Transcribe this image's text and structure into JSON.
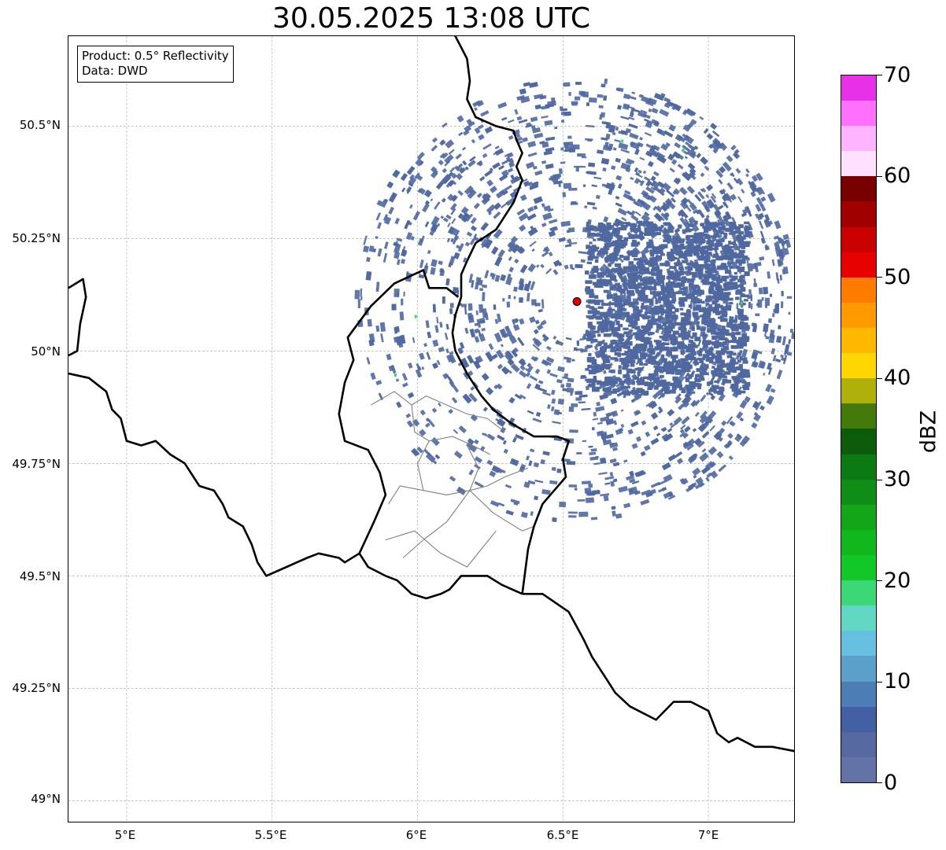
{
  "title": "30.05.2025 13:08 UTC",
  "info": {
    "product": "Product: 0.5° Reflectivity",
    "data": "Data: DWD"
  },
  "lat_ticks": [
    "50.5°N",
    "50.25°N",
    "50°N",
    "49.75°N",
    "49.5°N",
    "49.25°N",
    "49°N"
  ],
  "lon_ticks": [
    "5°E",
    "5.5°E",
    "6°E",
    "6.5°E",
    "7°E"
  ],
  "colorbar": {
    "unit": "dBZ",
    "ticks": [
      "0",
      "10",
      "20",
      "30",
      "40",
      "50",
      "60",
      "70"
    ],
    "colors": [
      "#6473a6",
      "#5568a0",
      "#4360a4",
      "#4c7db4",
      "#5aa0c8",
      "#64c0de",
      "#62d8c4",
      "#3cd878",
      "#12c828",
      "#10b81c",
      "#12a618",
      "#0e8e16",
      "#0c7a12",
      "#0c5c0c",
      "#447a0c",
      "#b0b00a",
      "#ffd600",
      "#ffb800",
      "#ff9a00",
      "#ff7c00",
      "#e60000",
      "#c80000",
      "#a00000",
      "#780000",
      "#ffe0ff",
      "#ffb4ff",
      "#ff70ff",
      "#e830e8"
    ]
  },
  "map": {
    "extent": {
      "lon_min": 4.8,
      "lon_max": 7.3,
      "lat_min": 48.95,
      "lat_max": 50.7
    },
    "radar_site": {
      "lon": 6.548,
      "lat": 50.11,
      "color": "#e00000"
    },
    "echo_color": "#5068a0",
    "echo_light_color": "#3cd878",
    "country_borders": [
      [
        [
          6.13,
          50.7
        ],
        [
          6.17,
          50.65
        ],
        [
          6.18,
          50.6
        ],
        [
          6.17,
          50.56
        ],
        [
          6.2,
          50.52
        ],
        [
          6.27,
          50.5
        ],
        [
          6.33,
          50.49
        ],
        [
          6.34,
          50.47
        ],
        [
          6.36,
          50.44
        ],
        [
          6.34,
          50.41
        ],
        [
          6.36,
          50.38
        ],
        [
          6.33,
          50.33
        ],
        [
          6.3,
          50.3
        ],
        [
          6.27,
          50.27
        ],
        [
          6.2,
          50.24
        ],
        [
          6.17,
          50.2
        ],
        [
          6.15,
          50.17
        ],
        [
          6.15,
          50.12
        ],
        [
          6.13,
          50.08
        ],
        [
          6.12,
          50.04
        ],
        [
          6.13,
          50.0
        ],
        [
          6.17,
          49.95
        ],
        [
          6.22,
          49.9
        ],
        [
          6.26,
          49.87
        ],
        [
          6.32,
          49.84
        ],
        [
          6.4,
          49.81
        ],
        [
          6.48,
          49.81
        ],
        [
          6.52,
          49.8
        ],
        [
          6.5,
          49.76
        ],
        [
          6.51,
          49.72
        ],
        [
          6.47,
          49.69
        ],
        [
          6.43,
          49.66
        ],
        [
          6.4,
          49.61
        ],
        [
          6.38,
          49.56
        ],
        [
          6.36,
          49.46
        ]
      ],
      [
        [
          6.13,
          50.7
        ],
        [
          6.05,
          50.75
        ]
      ],
      [
        [
          6.36,
          49.46
        ],
        [
          6.43,
          49.46
        ],
        [
          6.52,
          49.42
        ],
        [
          6.57,
          49.36
        ],
        [
          6.6,
          49.32
        ],
        [
          6.64,
          49.28
        ],
        [
          6.68,
          49.24
        ],
        [
          6.73,
          49.21
        ],
        [
          6.82,
          49.18
        ],
        [
          6.85,
          49.2
        ],
        [
          6.88,
          49.22
        ],
        [
          6.94,
          49.22
        ],
        [
          7.0,
          49.2
        ],
        [
          7.03,
          49.15
        ],
        [
          7.07,
          49.13
        ],
        [
          7.1,
          49.14
        ],
        [
          7.16,
          49.12
        ],
        [
          7.22,
          49.12
        ],
        [
          7.3,
          49.11
        ]
      ],
      [
        [
          4.8,
          50.14
        ],
        [
          4.85,
          50.16
        ],
        [
          4.86,
          50.12
        ],
        [
          4.84,
          50.06
        ],
        [
          4.83,
          50.0
        ],
        [
          4.8,
          49.99
        ]
      ],
      [
        [
          4.8,
          49.95
        ],
        [
          4.87,
          49.94
        ],
        [
          4.93,
          49.91
        ],
        [
          4.95,
          49.87
        ],
        [
          4.98,
          49.85
        ],
        [
          5.0,
          49.8
        ],
        [
          5.05,
          49.79
        ],
        [
          5.1,
          49.8
        ],
        [
          5.15,
          49.77
        ],
        [
          5.2,
          49.75
        ],
        [
          5.25,
          49.7
        ],
        [
          5.3,
          49.69
        ],
        [
          5.33,
          49.66
        ],
        [
          5.35,
          49.63
        ],
        [
          5.4,
          49.61
        ],
        [
          5.43,
          49.57
        ],
        [
          5.45,
          49.53
        ],
        [
          5.48,
          49.5
        ],
        [
          5.55,
          49.52
        ],
        [
          5.62,
          49.54
        ],
        [
          5.66,
          49.55
        ],
        [
          5.73,
          49.54
        ],
        [
          5.75,
          49.53
        ],
        [
          5.8,
          49.55
        ],
        [
          5.83,
          49.52
        ],
        [
          5.89,
          49.5
        ],
        [
          5.93,
          49.49
        ],
        [
          5.98,
          49.46
        ],
        [
          6.03,
          49.45
        ],
        [
          6.08,
          49.46
        ],
        [
          6.11,
          49.47
        ],
        [
          6.15,
          49.5
        ],
        [
          6.24,
          49.5
        ],
        [
          6.29,
          49.48
        ],
        [
          6.36,
          49.46
        ]
      ],
      [
        [
          5.8,
          49.55
        ],
        [
          5.85,
          49.62
        ],
        [
          5.89,
          49.68
        ],
        [
          5.87,
          49.73
        ],
        [
          5.83,
          49.78
        ],
        [
          5.75,
          49.8
        ],
        [
          5.73,
          49.86
        ],
        [
          5.75,
          49.93
        ],
        [
          5.78,
          49.98
        ],
        [
          5.76,
          50.03
        ],
        [
          5.84,
          50.1
        ],
        [
          5.92,
          50.15
        ],
        [
          6.02,
          50.18
        ],
        [
          6.04,
          50.14
        ],
        [
          6.1,
          50.14
        ],
        [
          6.14,
          50.12
        ]
      ]
    ],
    "admin_borders": [
      [
        [
          5.84,
          49.88
        ],
        [
          5.92,
          49.91
        ],
        [
          5.98,
          49.88
        ],
        [
          6.03,
          49.9
        ],
        [
          6.1,
          49.88
        ],
        [
          6.17,
          49.86
        ],
        [
          6.24,
          49.85
        ],
        [
          6.3,
          49.82
        ]
      ],
      [
        [
          5.98,
          49.88
        ],
        [
          5.99,
          49.82
        ],
        [
          6.04,
          49.8
        ],
        [
          6.12,
          49.81
        ],
        [
          6.19,
          49.79
        ],
        [
          6.25,
          49.77
        ]
      ],
      [
        [
          6.04,
          49.8
        ],
        [
          6.0,
          49.75
        ],
        [
          6.02,
          49.69
        ],
        [
          5.94,
          49.7
        ],
        [
          5.9,
          49.66
        ]
      ],
      [
        [
          6.02,
          49.69
        ],
        [
          6.1,
          49.68
        ],
        [
          6.18,
          49.69
        ],
        [
          6.24,
          49.7
        ],
        [
          6.3,
          49.72
        ],
        [
          6.38,
          49.74
        ]
      ],
      [
        [
          6.17,
          49.79
        ],
        [
          6.21,
          49.74
        ],
        [
          6.18,
          49.69
        ],
        [
          6.1,
          49.62
        ],
        [
          6.02,
          49.58
        ]
      ],
      [
        [
          6.18,
          49.69
        ],
        [
          6.26,
          49.64
        ],
        [
          6.36,
          49.6
        ],
        [
          6.4,
          49.61
        ]
      ],
      [
        [
          5.89,
          49.58
        ],
        [
          5.99,
          49.6
        ],
        [
          6.08,
          49.55
        ],
        [
          6.17,
          49.52
        ],
        [
          6.22,
          49.56
        ],
        [
          6.27,
          49.6
        ]
      ],
      [
        [
          6.02,
          49.58
        ],
        [
          5.95,
          49.54
        ]
      ]
    ],
    "echo_light_spots": [
      [
        5.92,
        49.95
      ],
      [
        6.7,
        50.47
      ],
      [
        6.91,
        50.45
      ],
      [
        5.99,
        50.08
      ],
      [
        7.11,
        50.11
      ]
    ]
  }
}
